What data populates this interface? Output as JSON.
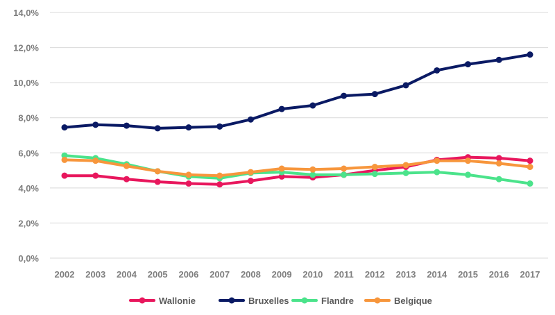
{
  "chart_data": {
    "type": "line",
    "title": "",
    "xlabel": "",
    "ylabel": "",
    "categories": [
      "2002",
      "2003",
      "2004",
      "2005",
      "2006",
      "2007",
      "2008",
      "2009",
      "2010",
      "2011",
      "2012",
      "2013",
      "2014",
      "2015",
      "2016",
      "2017"
    ],
    "y_ticks": [
      "0,0%",
      "2,0%",
      "4,0%",
      "6,0%",
      "8,0%",
      "10,0%",
      "12,0%",
      "14,0%"
    ],
    "ylim": [
      0,
      14
    ],
    "grid": true,
    "legend_position": "bottom",
    "series": [
      {
        "name": "Wallonie",
        "color": "#e8175d",
        "values": [
          4.7,
          4.7,
          4.5,
          4.35,
          4.25,
          4.2,
          4.4,
          4.65,
          4.6,
          4.75,
          5.0,
          5.2,
          5.6,
          5.75,
          5.7,
          5.55
        ]
      },
      {
        "name": "Bruxelles",
        "color": "#0a1a64",
        "values": [
          7.45,
          7.6,
          7.55,
          7.4,
          7.45,
          7.5,
          7.9,
          8.5,
          8.7,
          9.25,
          9.35,
          9.85,
          10.7,
          11.05,
          11.3,
          11.6
        ]
      },
      {
        "name": "Flandre",
        "color": "#4be38b",
        "values": [
          5.85,
          5.7,
          5.35,
          4.95,
          4.65,
          4.55,
          4.85,
          4.9,
          4.75,
          4.75,
          4.8,
          4.85,
          4.9,
          4.75,
          4.5,
          4.25
        ]
      },
      {
        "name": "Belgique",
        "color": "#f7963c",
        "values": [
          5.6,
          5.55,
          5.25,
          4.95,
          4.75,
          4.7,
          4.9,
          5.1,
          5.05,
          5.1,
          5.2,
          5.3,
          5.55,
          5.55,
          5.4,
          5.2
        ]
      }
    ]
  }
}
